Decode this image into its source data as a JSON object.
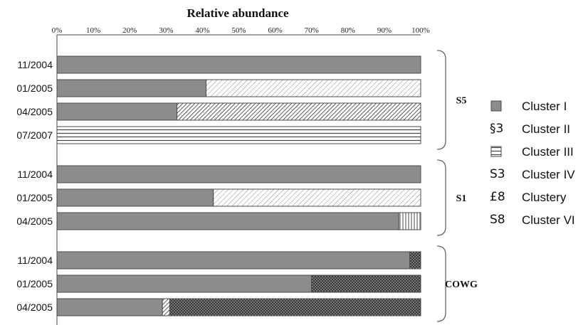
{
  "chart_data": {
    "type": "bar",
    "orientation": "horizontal",
    "stacked": true,
    "title": "Relative abundance",
    "xlim": [
      0,
      100
    ],
    "x_ticks": [
      "0%",
      "10%",
      "20%",
      "30%",
      "40%",
      "50%",
      "60%",
      "70%",
      "80%",
      "90%",
      "100%"
    ],
    "grid": false,
    "legend_position": "right",
    "series": [
      {
        "name": "Cluster I",
        "legend_symbol": "",
        "pattern": "solid-gray"
      },
      {
        "name": "Cluster II",
        "legend_symbol": "§3",
        "pattern": "diagonal-light"
      },
      {
        "name": "Cluster III",
        "legend_symbol": "",
        "pattern": "horizontal-lines"
      },
      {
        "name": "Cluster IV",
        "legend_symbol": "S3",
        "pattern": "diagonal-dense"
      },
      {
        "name": "Clustery",
        "legend_symbol": "£8",
        "pattern": "vertical-gray"
      },
      {
        "name": "Cluster VI",
        "legend_symbol": "S8",
        "pattern": "crosshatch-dark"
      }
    ],
    "groups": [
      {
        "label": "S5",
        "rows": [
          {
            "category": "11/2004",
            "values": [
              100,
              0,
              0,
              0,
              0,
              0
            ]
          },
          {
            "category": "01/2005",
            "values": [
              41,
              59,
              0,
              0,
              0,
              0
            ]
          },
          {
            "category": "04/2005",
            "values": [
              33,
              0,
              0,
              67,
              0,
              0
            ]
          },
          {
            "category": "07/2007",
            "values": [
              0,
              0,
              100,
              0,
              0,
              0
            ]
          }
        ]
      },
      {
        "label": "S1",
        "rows": [
          {
            "category": "11/2004",
            "values": [
              100,
              0,
              0,
              0,
              0,
              0
            ]
          },
          {
            "category": "01/2005",
            "values": [
              43,
              57,
              0,
              0,
              0,
              0
            ]
          },
          {
            "category": "04/2005",
            "values": [
              94,
              0,
              0,
              0,
              6,
              0
            ]
          }
        ]
      },
      {
        "label": "COWG",
        "rows": [
          {
            "category": "11/2004",
            "values": [
              97,
              0,
              0,
              0,
              0,
              3
            ]
          },
          {
            "category": "01/2005",
            "values": [
              70,
              0,
              0,
              0,
              0,
              30
            ]
          },
          {
            "category": "04/2005",
            "values": [
              29,
              0,
              0,
              2,
              0,
              69
            ]
          }
        ]
      }
    ],
    "colors": {
      "solid_gray": "#8c8c8c",
      "outline": "#4a4a4a",
      "crosshatch_dark": "#3a3a3a"
    }
  }
}
